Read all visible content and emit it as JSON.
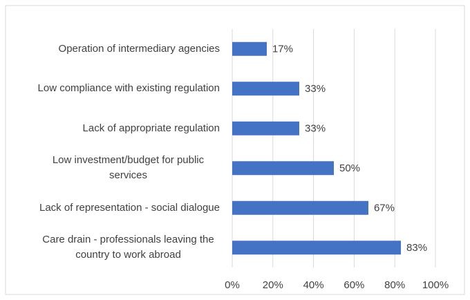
{
  "chart_data": {
    "type": "bar",
    "orientation": "horizontal",
    "categories": [
      "Operation of intermediary agencies",
      "Low compliance with existing regulation",
      "Lack of appropriate regulation",
      "Low investment/budget for public services",
      "Lack of representation - social dialogue",
      "Care drain - professionals leaving the country to work abroad"
    ],
    "values": [
      17,
      33,
      33,
      50,
      67,
      83
    ],
    "value_labels": [
      "17%",
      "33%",
      "33%",
      "50%",
      "67%",
      "83%"
    ],
    "color": "#4472c4",
    "xlim": [
      0,
      100
    ],
    "xticks": [
      {
        "value": 0,
        "label": "0%"
      },
      {
        "value": 20,
        "label": "20%"
      },
      {
        "value": 40,
        "label": "40%"
      },
      {
        "value": 60,
        "label": "60%"
      },
      {
        "value": 80,
        "label": "80%"
      },
      {
        "value": 100,
        "label": "100%"
      }
    ],
    "grid": true
  }
}
